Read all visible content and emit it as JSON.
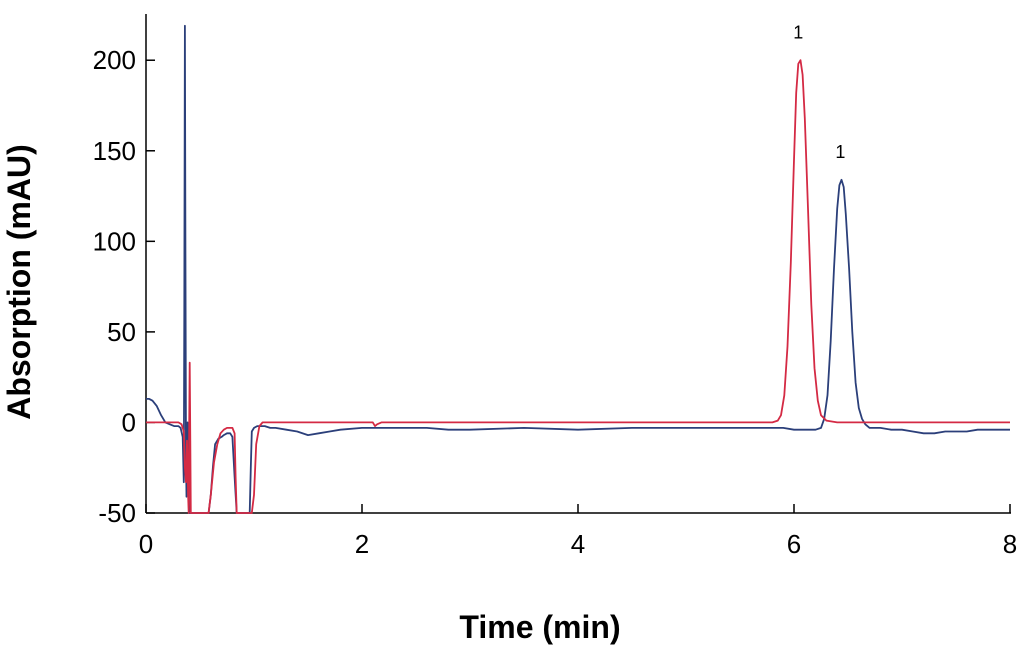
{
  "chart_data": {
    "type": "line",
    "title": "",
    "xlabel": "Time (min)",
    "ylabel": "Absorption (mAU)",
    "xlim": [
      0,
      8
    ],
    "ylim": [
      -50,
      220
    ],
    "x_ticks": [
      0,
      2,
      4,
      6,
      8
    ],
    "y_ticks": [
      -50,
      0,
      50,
      100,
      150,
      200
    ],
    "grid": false,
    "legend": "none",
    "series": [
      {
        "color": "#2b3f7a",
        "x": [
          0.0,
          0.03,
          0.06,
          0.1,
          0.14,
          0.18,
          0.22,
          0.26,
          0.3,
          0.32,
          0.34,
          0.35,
          0.355,
          0.36,
          0.365,
          0.37,
          0.375,
          0.38,
          0.385,
          0.39,
          0.395,
          0.4,
          0.42,
          0.45,
          0.5,
          0.55,
          0.58,
          0.6,
          0.62,
          0.64,
          0.67,
          0.7,
          0.72,
          0.75,
          0.78,
          0.8,
          0.82,
          0.84,
          0.86,
          0.88,
          0.9,
          0.92,
          0.94,
          0.96,
          0.97,
          0.98,
          1.0,
          1.03,
          1.06,
          1.1,
          1.15,
          1.2,
          1.3,
          1.4,
          1.5,
          1.6,
          1.7,
          1.8,
          2.0,
          2.2,
          2.4,
          2.6,
          2.8,
          3.0,
          3.5,
          4.0,
          4.5,
          5.0,
          5.5,
          5.9,
          6.0,
          6.1,
          6.2,
          6.25,
          6.28,
          6.31,
          6.34,
          6.37,
          6.4,
          6.42,
          6.44,
          6.46,
          6.48,
          6.51,
          6.54,
          6.57,
          6.6,
          6.63,
          6.66,
          6.7,
          6.75,
          6.8,
          6.9,
          7.0,
          7.1,
          7.2,
          7.3,
          7.4,
          7.5,
          7.6,
          7.7,
          7.8,
          7.9,
          8.0
        ],
        "y": [
          13,
          13,
          12,
          9,
          4,
          0,
          -1,
          -2,
          -2,
          -3,
          -8,
          -33,
          60,
          219,
          100,
          -20,
          -41,
          -5,
          0,
          -15,
          -33,
          -50,
          -50,
          -50,
          -50,
          -50,
          -50,
          -40,
          -24,
          -12,
          -9,
          -8,
          -7,
          -6,
          -6,
          -8,
          -30,
          -50,
          -50,
          -50,
          -50,
          -50,
          -50,
          -50,
          -25,
          -5,
          -3,
          -2,
          -2,
          -2,
          -3,
          -3,
          -4,
          -5,
          -7,
          -6,
          -5,
          -4,
          -3,
          -3,
          -3,
          -3,
          -4,
          -4,
          -3,
          -4,
          -3,
          -3,
          -3,
          -3,
          -4,
          -4,
          -4,
          -3,
          2,
          15,
          45,
          85,
          118,
          131,
          134,
          130,
          115,
          85,
          50,
          22,
          8,
          2,
          -1,
          -3,
          -3,
          -3,
          -4,
          -4,
          -5,
          -6,
          -6,
          -5,
          -5,
          -5,
          -4,
          -4,
          -4,
          -4
        ]
      },
      {
        "color": "#d42a44",
        "x": [
          0.0,
          0.1,
          0.2,
          0.3,
          0.33,
          0.35,
          0.36,
          0.37,
          0.38,
          0.39,
          0.395,
          0.4,
          0.405,
          0.41,
          0.415,
          0.42,
          0.43,
          0.45,
          0.5,
          0.55,
          0.58,
          0.6,
          0.63,
          0.66,
          0.69,
          0.72,
          0.75,
          0.78,
          0.8,
          0.82,
          0.83,
          0.84,
          0.86,
          0.88,
          0.9,
          0.92,
          0.94,
          0.96,
          0.98,
          1.0,
          1.02,
          1.05,
          1.08,
          1.1,
          1.15,
          1.2,
          1.5,
          2.0,
          2.1,
          2.12,
          2.14,
          2.18,
          2.3,
          2.5,
          3.0,
          3.5,
          4.0,
          4.5,
          5.0,
          5.5,
          5.8,
          5.85,
          5.88,
          5.91,
          5.94,
          5.97,
          6.0,
          6.02,
          6.04,
          6.06,
          6.08,
          6.1,
          6.13,
          6.16,
          6.19,
          6.22,
          6.25,
          6.3,
          6.4,
          6.6,
          7.0,
          7.5,
          8.0
        ],
        "y": [
          0,
          0,
          0,
          0,
          -1,
          -5,
          -25,
          -33,
          -10,
          -40,
          -50,
          -2,
          33,
          -10,
          -50,
          -50,
          -50,
          -50,
          -50,
          -50,
          -50,
          -40,
          -22,
          -12,
          -6,
          -4,
          -3,
          -3,
          -3,
          -6,
          -30,
          -50,
          -50,
          -50,
          -50,
          -50,
          -50,
          -50,
          -50,
          -40,
          -12,
          -2,
          0,
          0,
          0,
          0,
          0,
          0,
          0,
          -2,
          -1,
          0,
          0,
          0,
          0,
          0,
          0,
          0,
          0,
          0,
          0,
          1,
          4,
          15,
          42,
          88,
          145,
          182,
          198,
          200,
          192,
          168,
          118,
          65,
          30,
          12,
          4,
          1,
          0,
          0,
          0,
          0,
          0
        ]
      }
    ],
    "annotations": [
      {
        "text": "1",
        "x": 6.04,
        "y": 212
      },
      {
        "text": "1",
        "x": 6.43,
        "y": 146
      }
    ]
  }
}
